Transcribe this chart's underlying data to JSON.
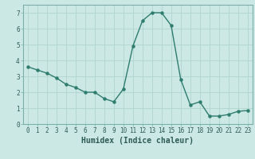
{
  "x": [
    0,
    1,
    2,
    3,
    4,
    5,
    6,
    7,
    8,
    9,
    10,
    11,
    12,
    13,
    14,
    15,
    16,
    17,
    18,
    19,
    20,
    21,
    22,
    23
  ],
  "y": [
    3.6,
    3.4,
    3.2,
    2.9,
    2.5,
    2.3,
    2.0,
    2.0,
    1.6,
    1.4,
    2.2,
    4.9,
    6.5,
    7.0,
    7.0,
    6.2,
    2.8,
    1.2,
    1.4,
    0.5,
    0.5,
    0.6,
    0.8,
    0.85
  ],
  "line_color": "#2e7d6e",
  "marker": "o",
  "marker_size": 2.2,
  "bg_color": "#cce8e4",
  "grid_color": "#b0d4cf",
  "xlabel": "Humidex (Indice chaleur)",
  "xlabel_fontsize": 7,
  "xlim": [
    -0.5,
    23.5
  ],
  "ylim": [
    0,
    7.5
  ],
  "yticks": [
    0,
    1,
    2,
    3,
    4,
    5,
    6,
    7
  ],
  "xtick_labels": [
    "0",
    "1",
    "2",
    "3",
    "4",
    "5",
    "6",
    "7",
    "8",
    "9",
    "10",
    "11",
    "12",
    "13",
    "14",
    "15",
    "16",
    "17",
    "18",
    "19",
    "20",
    "21",
    "22",
    "23"
  ],
  "tick_fontsize": 5.5,
  "line_width": 1.0
}
